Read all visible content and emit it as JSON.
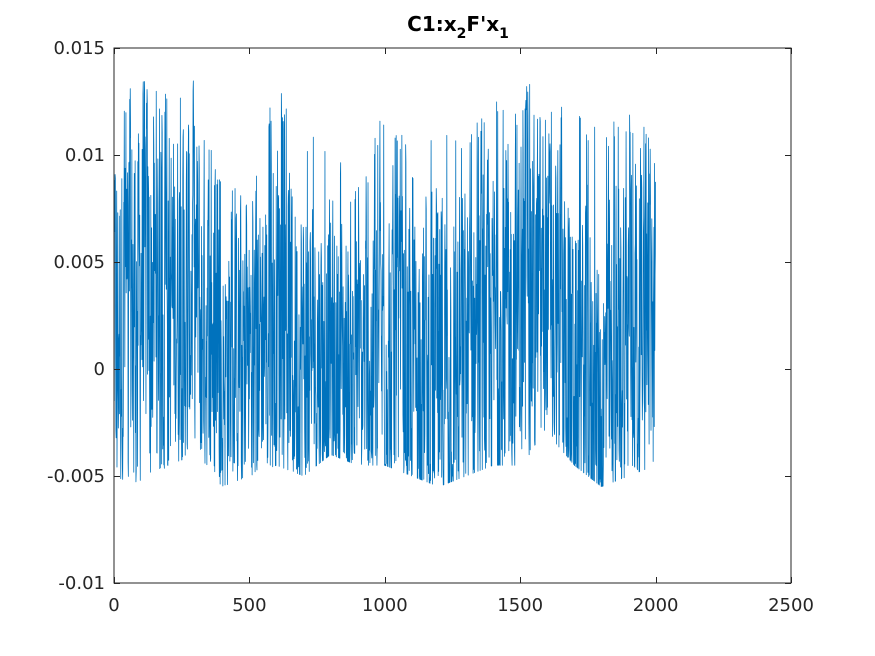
{
  "chart_data": {
    "type": "line",
    "title": {
      "prefix": "C1:x",
      "sub1": "2",
      "middle": "F'x",
      "sub2": "1"
    },
    "xlabel": "",
    "ylabel": "",
    "xlim": [
      0,
      2500
    ],
    "ylim": [
      -0.01,
      0.015
    ],
    "xticks": [
      0,
      500,
      1000,
      1500,
      2000,
      2500
    ],
    "xtick_labels": [
      "0",
      "500",
      "1000",
      "1500",
      "2000",
      "2500"
    ],
    "yticks": [
      -0.01,
      -0.005,
      0,
      0.005,
      0.01,
      0.015
    ],
    "ytick_labels": [
      "-0.01",
      "-0.005",
      "0",
      "0.005",
      "0.01",
      "0.015"
    ],
    "grid": false,
    "series": [
      {
        "color": "#0072bd",
        "n_points": 2000,
        "x_range": [
          1,
          2000
        ],
        "envelope": {
          "x": [
            0,
            100,
            200,
            300,
            400,
            500,
            600,
            700,
            800,
            900,
            1000,
            1100,
            1200,
            1300,
            1400,
            1500,
            1600,
            1700,
            1800,
            1900,
            2000
          ],
          "upper": [
            0.0125,
            0.0135,
            0.013,
            0.0135,
            0.0085,
            0.0085,
            0.0135,
            0.0105,
            0.0115,
            0.0085,
            0.0125,
            0.01,
            0.0125,
            0.0115,
            0.0125,
            0.0135,
            0.013,
            0.0125,
            0.011,
            0.0125,
            0.0105
          ],
          "lower": [
            -0.005,
            -0.0055,
            -0.0045,
            -0.004,
            -0.0055,
            -0.005,
            -0.0045,
            -0.005,
            -0.004,
            -0.0045,
            -0.0045,
            -0.005,
            -0.0055,
            -0.005,
            -0.0045,
            -0.0045,
            -0.003,
            -0.0045,
            -0.0055,
            -0.005,
            -0.0045
          ],
          "center": [
            0.002,
            0.004,
            0.003,
            0.004,
            0.0005,
            0.001,
            0.003,
            0.001,
            0.0005,
            0.0,
            0.001,
            0.0005,
            0.0,
            0.001,
            0.0015,
            0.0035,
            0.004,
            0.0,
            -0.002,
            0.003,
            0.002
          ]
        }
      }
    ]
  }
}
